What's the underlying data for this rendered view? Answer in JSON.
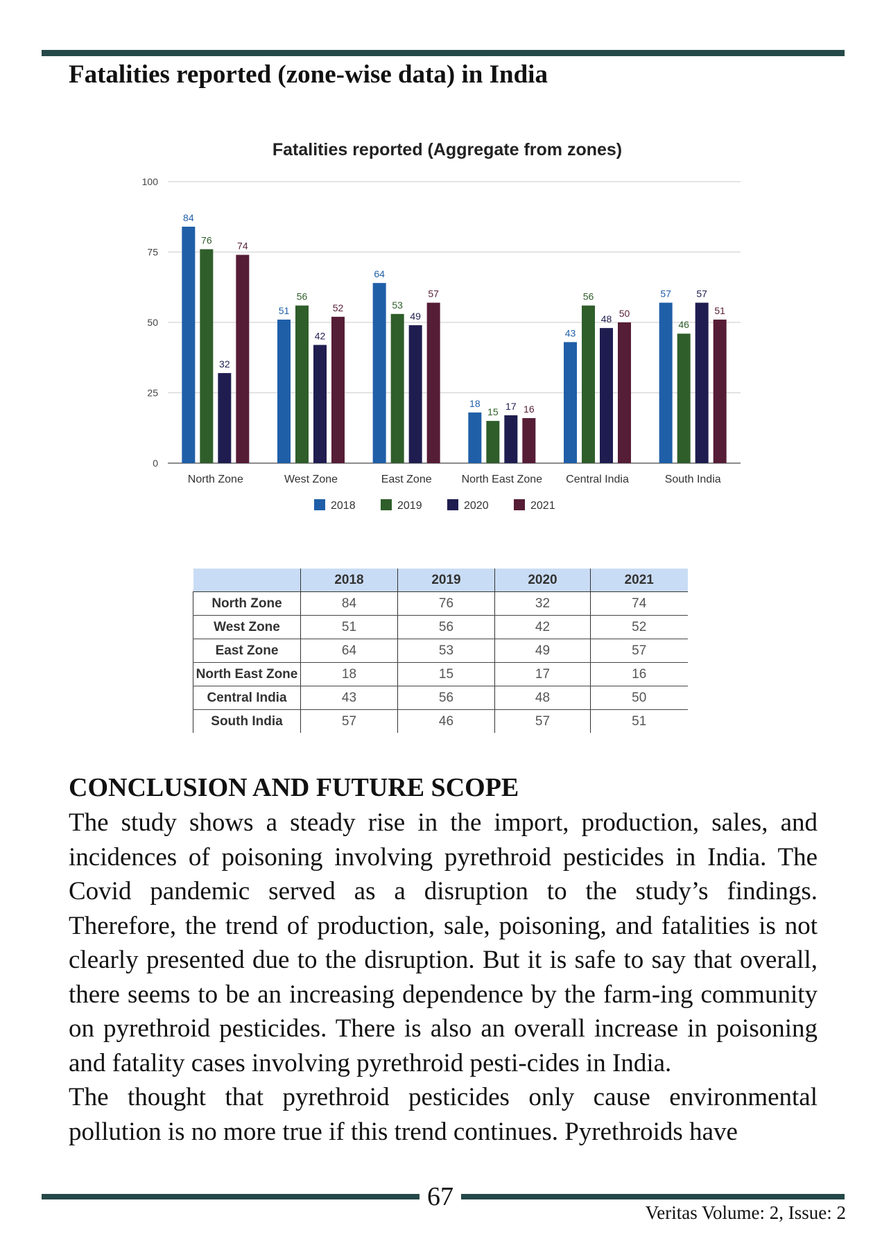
{
  "section_heading": "Fatalities reported (zone-wise data) in India",
  "chart_data": {
    "type": "bar",
    "title": "Fatalities reported (Aggregate from zones)",
    "categories": [
      "North Zone",
      "West Zone",
      "East Zone",
      "North East Zone",
      "Central India",
      "South India"
    ],
    "series": [
      {
        "name": "2018",
        "values": [
          84,
          51,
          64,
          18,
          43,
          57
        ]
      },
      {
        "name": "2019",
        "values": [
          76,
          56,
          53,
          15,
          56,
          46
        ]
      },
      {
        "name": "2020",
        "values": [
          32,
          42,
          49,
          17,
          48,
          57
        ]
      },
      {
        "name": "2021",
        "values": [
          74,
          52,
          57,
          16,
          50,
          51
        ]
      }
    ],
    "colors": [
      "#1f5fa8",
      "#2f5e2a",
      "#1f1d50",
      "#561d36"
    ],
    "label_colors": [
      "#1f5fa8",
      "#2f5e2a",
      "#1f1d50",
      "#561d36"
    ],
    "ylim": [
      0,
      100
    ],
    "yticks": [
      0,
      25,
      50,
      75,
      100
    ],
    "grid": true,
    "legend_position": "bottom"
  },
  "table": {
    "headers": [
      "",
      "2018",
      "2019",
      "2020",
      "2021"
    ],
    "rows": [
      [
        "North Zone",
        "84",
        "76",
        "32",
        "74"
      ],
      [
        "West Zone",
        "51",
        "56",
        "42",
        "52"
      ],
      [
        "East Zone",
        "64",
        "53",
        "49",
        "57"
      ],
      [
        "North East Zone",
        "18",
        "15",
        "17",
        "16"
      ],
      [
        "Central India",
        "43",
        "56",
        "48",
        "50"
      ],
      [
        "South India",
        "57",
        "46",
        "57",
        "51"
      ]
    ]
  },
  "conclusion": {
    "heading": "CONCLUSION AND FUTURE SCOPE",
    "paragraph1": "The study shows a steady rise in the import, production, sales, and incidences of poisoning involving pyrethroid pesticides in India. The Covid pandemic served as a disruption to the study’s findings. Therefore, the trend of production, sale, poisoning, and fatalities is not clearly presented due to the disruption. But it is safe to say that overall, there seems to be an increasing dependence by the farm-ing community on pyrethroid pesticides. There is also an overall increase in poisoning and fatality cases involving pyrethroid pesti-cides in India.",
    "paragraph2": "The thought that pyrethroid pesticides only cause environmental pollution is no more true if this trend continues. Pyrethroids have"
  },
  "footer": {
    "page_number": "67",
    "journal": "Veritas Volume: 2, Issue: 2"
  }
}
